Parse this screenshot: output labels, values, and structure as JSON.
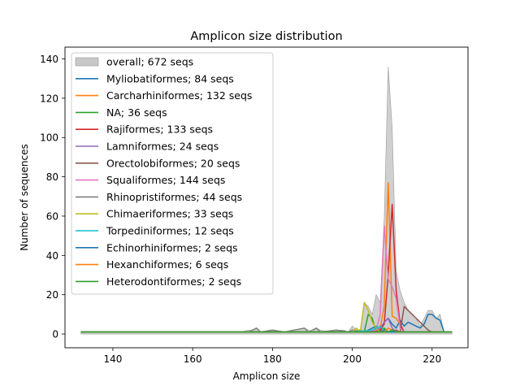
{
  "chart_data": {
    "type": "line",
    "title": "Amplicon size distribution",
    "xlabel": "Amplicon size",
    "ylabel": "Number of sequences",
    "xlim": [
      128,
      229
    ],
    "ylim": [
      -7,
      146
    ],
    "xticks": [
      140,
      160,
      180,
      200,
      220
    ],
    "yticks": [
      0,
      20,
      40,
      60,
      80,
      100,
      120,
      140
    ],
    "legend_position": "upper-left",
    "grid": false,
    "overall": {
      "name": "overall; 672 seqs",
      "color": "#c8c8c8",
      "points": [
        [
          132,
          1
        ],
        [
          172,
          1
        ],
        [
          174,
          2
        ],
        [
          175,
          2
        ],
        [
          176,
          3
        ],
        [
          177,
          1
        ],
        [
          180,
          2
        ],
        [
          183,
          1
        ],
        [
          185,
          2
        ],
        [
          188,
          3
        ],
        [
          189,
          2
        ],
        [
          190,
          1
        ],
        [
          191,
          3
        ],
        [
          192,
          2
        ],
        [
          194,
          1
        ],
        [
          196,
          2
        ],
        [
          198,
          2
        ],
        [
          199,
          1
        ],
        [
          200,
          4
        ],
        [
          201,
          2
        ],
        [
          202,
          1
        ],
        [
          203,
          16
        ],
        [
          204,
          14
        ],
        [
          205,
          10
        ],
        [
          206,
          20
        ],
        [
          207,
          16
        ],
        [
          208,
          58
        ],
        [
          209,
          136
        ],
        [
          210,
          105
        ],
        [
          211,
          32
        ],
        [
          212,
          22
        ],
        [
          213,
          16
        ],
        [
          214,
          12
        ],
        [
          215,
          10
        ],
        [
          216,
          8
        ],
        [
          217,
          4
        ],
        [
          218,
          8
        ],
        [
          219,
          12
        ],
        [
          220,
          12
        ],
        [
          221,
          8
        ],
        [
          222,
          10
        ],
        [
          223,
          1
        ],
        [
          225,
          1
        ]
      ]
    },
    "series": [
      {
        "name": "Myliobatiformes; 84 seqs",
        "color": "#1f77b4",
        "points": [
          [
            132,
            1
          ],
          [
            172,
            1
          ],
          [
            176,
            1
          ],
          [
            186,
            1
          ],
          [
            198,
            1
          ],
          [
            203,
            1
          ],
          [
            204,
            2
          ],
          [
            205,
            3
          ],
          [
            206,
            4
          ],
          [
            207,
            1
          ],
          [
            208,
            6
          ],
          [
            209,
            8
          ],
          [
            210,
            5
          ],
          [
            211,
            3
          ],
          [
            212,
            7
          ],
          [
            213,
            4
          ],
          [
            214,
            6
          ],
          [
            215,
            5
          ],
          [
            216,
            4
          ],
          [
            217,
            3
          ],
          [
            218,
            5
          ],
          [
            219,
            10
          ],
          [
            220,
            10
          ],
          [
            221,
            8
          ],
          [
            222,
            7
          ],
          [
            223,
            1
          ],
          [
            225,
            1
          ]
        ]
      },
      {
        "name": "Carcharhiniformes; 132 seqs",
        "color": "#ff7f0e",
        "points": [
          [
            132,
            1
          ],
          [
            180,
            1
          ],
          [
            200,
            1
          ],
          [
            205,
            1
          ],
          [
            206,
            2
          ],
          [
            207,
            3
          ],
          [
            208,
            14
          ],
          [
            209,
            77
          ],
          [
            210,
            9
          ],
          [
            211,
            8
          ],
          [
            212,
            5
          ],
          [
            213,
            1
          ],
          [
            225,
            1
          ]
        ]
      },
      {
        "name": "NA; 36 seqs",
        "color": "#2ca02c",
        "points": [
          [
            132,
            1
          ],
          [
            176,
            1
          ],
          [
            190,
            1
          ],
          [
            200,
            1
          ],
          [
            202,
            2
          ],
          [
            203,
            1
          ],
          [
            204,
            10
          ],
          [
            205,
            8
          ],
          [
            206,
            1
          ],
          [
            207,
            2
          ],
          [
            208,
            3
          ],
          [
            209,
            1
          ],
          [
            210,
            2
          ],
          [
            211,
            1
          ],
          [
            225,
            1
          ]
        ]
      },
      {
        "name": "Rajiformes; 133 seqs",
        "color": "#d62728",
        "points": [
          [
            132,
            1
          ],
          [
            185,
            1
          ],
          [
            200,
            1
          ],
          [
            207,
            2
          ],
          [
            208,
            5
          ],
          [
            209,
            30
          ],
          [
            210,
            66
          ],
          [
            211,
            22
          ],
          [
            212,
            5
          ],
          [
            213,
            1
          ],
          [
            225,
            1
          ]
        ]
      },
      {
        "name": "Lamniformes; 24 seqs",
        "color": "#9467bd",
        "points": [
          [
            132,
            1
          ],
          [
            190,
            1
          ],
          [
            200,
            1
          ],
          [
            206,
            2
          ],
          [
            207,
            3
          ],
          [
            208,
            6
          ],
          [
            209,
            8
          ],
          [
            210,
            3
          ],
          [
            211,
            1
          ],
          [
            225,
            1
          ]
        ]
      },
      {
        "name": "Orectolobiformes; 20 seqs",
        "color": "#8c564b",
        "points": [
          [
            132,
            1
          ],
          [
            200,
            1
          ],
          [
            210,
            1
          ],
          [
            211,
            2
          ],
          [
            212,
            1
          ],
          [
            213,
            14
          ],
          [
            214,
            12
          ],
          [
            215,
            10
          ],
          [
            216,
            8
          ],
          [
            217,
            6
          ],
          [
            218,
            4
          ],
          [
            219,
            2
          ],
          [
            220,
            1
          ],
          [
            225,
            1
          ]
        ]
      },
      {
        "name": "Squaliformes; 144 seqs",
        "color": "#e377c2",
        "points": [
          [
            132,
            1
          ],
          [
            200,
            1
          ],
          [
            206,
            2
          ],
          [
            207,
            10
          ],
          [
            208,
            55
          ],
          [
            209,
            28
          ],
          [
            210,
            24
          ],
          [
            211,
            18
          ],
          [
            212,
            3
          ],
          [
            213,
            1
          ],
          [
            225,
            1
          ]
        ]
      },
      {
        "name": "Rhinopristiformes; 44 seqs",
        "color": "#7f7f7f",
        "points": [
          [
            132,
            1
          ],
          [
            172,
            1
          ],
          [
            174,
            1
          ],
          [
            176,
            3
          ],
          [
            177,
            1
          ],
          [
            180,
            2
          ],
          [
            183,
            1
          ],
          [
            188,
            3
          ],
          [
            189,
            1
          ],
          [
            191,
            3
          ],
          [
            192,
            1
          ],
          [
            196,
            2
          ],
          [
            199,
            1
          ],
          [
            200,
            2
          ],
          [
            202,
            1
          ],
          [
            205,
            1
          ],
          [
            225,
            1
          ]
        ]
      },
      {
        "name": "Chimaeriformes; 33 seqs",
        "color": "#bcbd22",
        "points": [
          [
            132,
            1
          ],
          [
            200,
            1
          ],
          [
            201,
            3
          ],
          [
            202,
            1
          ],
          [
            203,
            16
          ],
          [
            204,
            12
          ],
          [
            205,
            6
          ],
          [
            206,
            3
          ],
          [
            207,
            1
          ],
          [
            225,
            1
          ]
        ]
      },
      {
        "name": "Torpediniformes; 12 seqs",
        "color": "#17becf",
        "points": [
          [
            132,
            1
          ],
          [
            200,
            1
          ],
          [
            205,
            2
          ],
          [
            206,
            3
          ],
          [
            207,
            4
          ],
          [
            208,
            2
          ],
          [
            209,
            1
          ],
          [
            225,
            1
          ]
        ]
      },
      {
        "name": "Echinorhiniformes; 2 seqs",
        "color": "#1f77b4",
        "points": [
          [
            132,
            1
          ],
          [
            207,
            1
          ],
          [
            208,
            2
          ],
          [
            209,
            1
          ],
          [
            225,
            1
          ]
        ]
      },
      {
        "name": "Hexanchiformes; 6 seqs",
        "color": "#ff7f0e",
        "points": [
          [
            132,
            1
          ],
          [
            208,
            1
          ],
          [
            209,
            3
          ],
          [
            210,
            2
          ],
          [
            211,
            1
          ],
          [
            225,
            1
          ]
        ]
      },
      {
        "name": "Heterodontiformes; 2 seqs",
        "color": "#2ca02c",
        "points": [
          [
            132,
            1
          ],
          [
            209,
            1
          ],
          [
            210,
            2
          ],
          [
            211,
            1
          ],
          [
            225,
            1
          ]
        ]
      }
    ]
  }
}
